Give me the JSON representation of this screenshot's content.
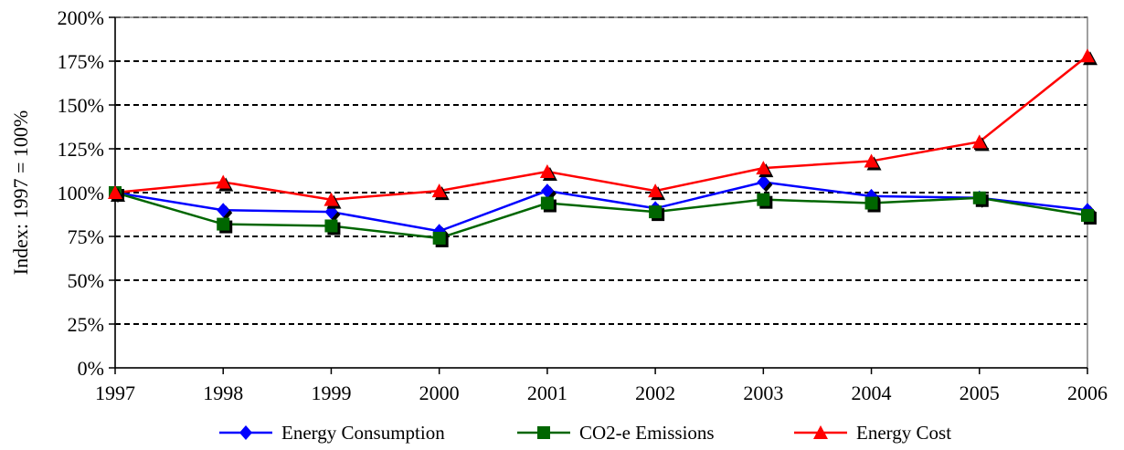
{
  "chart_data": {
    "type": "line",
    "title": "",
    "xlabel": "",
    "ylabel": "Index: 1997 = 100%",
    "x": [
      "1997",
      "1998",
      "1999",
      "2000",
      "2001",
      "2002",
      "2003",
      "2004",
      "2005",
      "2006"
    ],
    "ylim": [
      0,
      200
    ],
    "y_ticks": [
      "0%",
      "25%",
      "50%",
      "75%",
      "100%",
      "125%",
      "150%",
      "175%",
      "200%"
    ],
    "grid": "horizontal dashed",
    "legend_position": "bottom",
    "series": [
      {
        "name": "Energy Consumption",
        "color": "#0000ff",
        "marker": "diamond",
        "values": [
          100,
          90,
          89,
          78,
          101,
          91,
          106,
          98,
          97,
          90
        ]
      },
      {
        "name": "CO2-e Emissions",
        "color": "#006600",
        "marker": "square",
        "values": [
          100,
          82,
          81,
          74,
          94,
          89,
          96,
          94,
          97,
          87
        ]
      },
      {
        "name": "Energy Cost",
        "color": "#ff0000",
        "marker": "triangle",
        "values": [
          100,
          106,
          96,
          101,
          112,
          101,
          114,
          118,
          129,
          178
        ]
      }
    ]
  }
}
